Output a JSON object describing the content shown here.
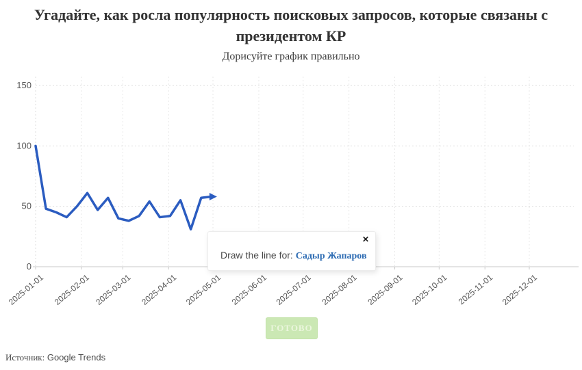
{
  "header": {
    "title": "Угадайте, как росла популярность поисковых запросов, которые связаны с президентом КР",
    "subtitle": "Дорисуйте график правильно"
  },
  "tooltip": {
    "prompt": "Draw the line for: ",
    "subject": "Садыр Жапаров",
    "close_label": "✕"
  },
  "controls": {
    "done_label": "ГОТОВО"
  },
  "footer": {
    "source_label": "Источник:",
    "source_value": " Google Trends"
  },
  "colors": {
    "line": "#2b5cc0",
    "grid_h": "#dddddd",
    "grid_v": "#e8e8e8",
    "baseline": "#c9c9c9",
    "tick_text": "#555555"
  },
  "chart_data": {
    "type": "line",
    "title": "",
    "xlabel": "",
    "ylabel": "",
    "x_ticks": [
      "2025-01-01",
      "2025-02-01",
      "2025-03-01",
      "2025-04-01",
      "2025-05-01",
      "2025-06-01",
      "2025-07-01",
      "2025-08-01",
      "2025-09-01",
      "2025-10-01",
      "2025-11-01",
      "2025-12-01"
    ],
    "y_ticks": [
      0,
      50,
      100,
      150
    ],
    "ylim": [
      0,
      158
    ],
    "xlim": [
      "2025-01-01",
      "2025-12-31"
    ],
    "grid": true,
    "legend_position": "none",
    "series": [
      {
        "name": "Садыр Жапаров",
        "color": "#2b5cc0",
        "end_arrow": true,
        "x": [
          "2025-01-01",
          "2025-01-08",
          "2025-01-15",
          "2025-01-22",
          "2025-01-29",
          "2025-02-05",
          "2025-02-12",
          "2025-02-19",
          "2025-02-26",
          "2025-03-05",
          "2025-03-12",
          "2025-03-19",
          "2025-03-26",
          "2025-04-02",
          "2025-04-09",
          "2025-04-16",
          "2025-04-23",
          "2025-04-30"
        ],
        "values": [
          100,
          48,
          45,
          41,
          50,
          61,
          47,
          57,
          40,
          38,
          42,
          54,
          41,
          42,
          55,
          31,
          57,
          58
        ]
      }
    ]
  }
}
